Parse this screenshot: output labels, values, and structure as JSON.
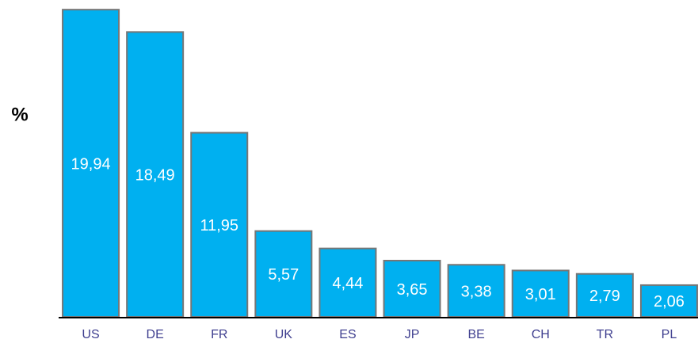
{
  "chart_data": {
    "type": "bar",
    "y_label": "%",
    "categories": [
      "US",
      "DE",
      "FR",
      "UK",
      "ES",
      "JP",
      "BE",
      "CH",
      "TR",
      "PL"
    ],
    "values": [
      19.94,
      18.49,
      11.95,
      5.57,
      4.44,
      3.65,
      3.38,
      3.01,
      2.79,
      2.06
    ],
    "value_labels": [
      "19,94",
      "18,49",
      "11,95",
      "5,57",
      "4,44",
      "3,65",
      "3,38",
      "3,01",
      "2,79",
      "2,06"
    ],
    "color": "#00b0f0",
    "ylim": [
      0,
      20
    ]
  }
}
